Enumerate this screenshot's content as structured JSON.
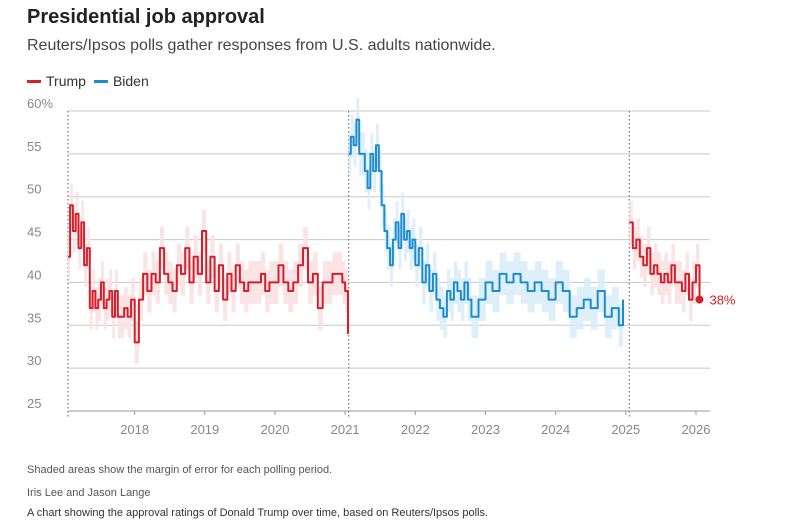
{
  "header": {
    "title": "Presidential job approval",
    "subtitle": "Reuters/Ipsos polls gather responses from U.S. adults nationwide."
  },
  "footer": {
    "note": "Shaded areas show the margin of error for each polling period.",
    "byline": "Iris Lee and Jason Lange",
    "caption": "A chart showing the approval ratings of Donald Trump over time, based on Reuters/Ipsos polls."
  },
  "colors": {
    "trump": "#d71f2b",
    "trump_band": "#fbe1e2",
    "biden": "#1a8cd0",
    "biden_band": "#dcedf8",
    "grid": "#c8c8c8",
    "axis_text": "#888888"
  },
  "chart_data": {
    "type": "line",
    "title": "Presidential job approval",
    "xlabel": "",
    "ylabel": "",
    "xlim": [
      2017.05,
      2026.2
    ],
    "ylim": [
      25,
      60
    ],
    "yticks": [
      60,
      55,
      50,
      45,
      40,
      35,
      30,
      25
    ],
    "ytick_labels": [
      "60%",
      "55",
      "50",
      "45",
      "40",
      "35",
      "30",
      "25"
    ],
    "xticks": [
      2018,
      2019,
      2020,
      2021,
      2022,
      2023,
      2024,
      2025,
      2026
    ],
    "xtick_labels": [
      "2018",
      "2019",
      "2020",
      "2021",
      "2022",
      "2023",
      "2024",
      "2025",
      "2026"
    ],
    "term_markers": [
      2017.05,
      2021.05,
      2025.05
    ],
    "band_margin": 2.5,
    "legend": [
      "Trump",
      "Biden"
    ],
    "end_label": "38%",
    "series": [
      {
        "name": "Trump",
        "term": 1,
        "x": [
          2017.05,
          2017.08,
          2017.12,
          2017.16,
          2017.2,
          2017.24,
          2017.28,
          2017.32,
          2017.36,
          2017.4,
          2017.44,
          2017.48,
          2017.52,
          2017.56,
          2017.6,
          2017.64,
          2017.68,
          2017.72,
          2017.76,
          2017.8,
          2017.85,
          2017.9,
          2017.95,
          2018.0,
          2018.06,
          2018.12,
          2018.18,
          2018.24,
          2018.3,
          2018.36,
          2018.42,
          2018.48,
          2018.54,
          2018.6,
          2018.66,
          2018.72,
          2018.78,
          2018.84,
          2018.9,
          2018.96,
          2019.02,
          2019.08,
          2019.14,
          2019.2,
          2019.26,
          2019.32,
          2019.38,
          2019.44,
          2019.5,
          2019.56,
          2019.62,
          2019.68,
          2019.74,
          2019.8,
          2019.86,
          2019.92,
          2019.98,
          2020.05,
          2020.12,
          2020.19,
          2020.26,
          2020.33,
          2020.4,
          2020.47,
          2020.54,
          2020.61,
          2020.68,
          2020.75,
          2020.82,
          2020.89,
          2020.96,
          2021.0,
          2021.04
        ],
        "values": [
          43,
          49,
          46,
          48,
          44,
          47,
          42,
          44,
          37,
          39,
          37,
          38,
          40,
          37,
          38,
          39,
          36,
          39,
          36,
          36,
          37,
          36,
          38,
          33,
          38,
          41,
          39,
          41,
          40,
          44,
          41,
          40,
          39,
          42,
          41,
          44,
          40,
          43,
          41,
          46,
          40,
          43,
          39,
          42,
          38,
          41,
          39,
          42,
          40,
          39,
          40,
          40,
          40,
          41,
          39,
          40,
          40,
          42,
          40,
          39,
          40,
          42,
          44,
          40,
          41,
          37,
          40,
          40,
          41,
          41,
          40,
          39,
          34
        ]
      },
      {
        "name": "Biden",
        "x": [
          2021.05,
          2021.08,
          2021.12,
          2021.16,
          2021.2,
          2021.24,
          2021.28,
          2021.32,
          2021.36,
          2021.4,
          2021.44,
          2021.48,
          2021.52,
          2021.56,
          2021.6,
          2021.64,
          2021.68,
          2021.72,
          2021.76,
          2021.8,
          2021.84,
          2021.88,
          2021.92,
          2021.96,
          2022.0,
          2022.05,
          2022.1,
          2022.15,
          2022.2,
          2022.25,
          2022.3,
          2022.35,
          2022.4,
          2022.45,
          2022.5,
          2022.55,
          2022.6,
          2022.65,
          2022.7,
          2022.75,
          2022.8,
          2022.9,
          2023.0,
          2023.1,
          2023.2,
          2023.3,
          2023.4,
          2023.5,
          2023.6,
          2023.7,
          2023.8,
          2023.9,
          2024.0,
          2024.1,
          2024.2,
          2024.3,
          2024.4,
          2024.5,
          2024.6,
          2024.7,
          2024.8,
          2024.9,
          2024.96
        ],
        "values": [
          55,
          57,
          56,
          59,
          55,
          55,
          53,
          51,
          55,
          53,
          56,
          53,
          49,
          46,
          44,
          42,
          45,
          47,
          44,
          48,
          45,
          46,
          44,
          45,
          42,
          44,
          40,
          42,
          39,
          41,
          38,
          37,
          36,
          39,
          38,
          40,
          39,
          38,
          40,
          38,
          36,
          38,
          40,
          39,
          41,
          40,
          41,
          40,
          39,
          40,
          39,
          38,
          40,
          39,
          36,
          37,
          38,
          37,
          39,
          36,
          37,
          35,
          38
        ]
      },
      {
        "name": "Trump",
        "term": 2,
        "x": [
          2025.05,
          2025.1,
          2025.15,
          2025.2,
          2025.25,
          2025.3,
          2025.35,
          2025.4,
          2025.45,
          2025.5,
          2025.55,
          2025.6,
          2025.65,
          2025.7,
          2025.75,
          2025.8,
          2025.85,
          2025.9,
          2025.95,
          2026.0,
          2026.05
        ],
        "values": [
          47,
          44,
          45,
          43,
          42,
          44,
          41,
          42,
          41,
          40,
          41,
          40,
          42,
          40,
          40,
          39,
          41,
          38,
          40,
          42,
          38
        ]
      }
    ]
  }
}
